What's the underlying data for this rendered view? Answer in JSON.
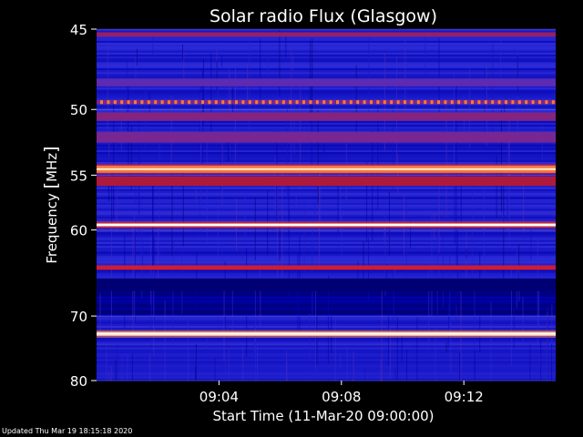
{
  "chart_data": {
    "type": "heatmap",
    "title": "Solar radio Flux (Glasgow)",
    "xlabel": "Start Time (11-Mar-20 09:00:00)",
    "ylabel_main": "Frequency ",
    "ylabel_unit": "MHz",
    "x_ticks": [
      "09:04",
      "09:08",
      "09:12"
    ],
    "x_tick_minutes": [
      4,
      8,
      12
    ],
    "x_range_minutes": [
      0,
      15
    ],
    "y_ticks": [
      45,
      50,
      55,
      60,
      70,
      80
    ],
    "y_scale": "reciprocal",
    "y_range_mhz": [
      45,
      80
    ],
    "colormap": [
      "#00004a",
      "#0000b0",
      "#2a2ad8",
      "#6a2aa8",
      "#b01a3a",
      "#ff2020",
      "#ff7a30",
      "#ffe070",
      "#ffffff"
    ],
    "bands": [
      {
        "mhz": 45.3,
        "intensity": 0.45,
        "width": 0.25
      },
      {
        "mhz": 48.2,
        "intensity": 0.35,
        "width": 0.5
      },
      {
        "mhz": 49.5,
        "intensity": 0.75,
        "width": 0.25,
        "dotted": true
      },
      {
        "mhz": 50.5,
        "intensity": 0.42,
        "width": 0.6
      },
      {
        "mhz": 52.0,
        "intensity": 0.4,
        "width": 0.8
      },
      {
        "mhz": 54.5,
        "intensity": 0.85,
        "width": 0.6
      },
      {
        "mhz": 55.5,
        "intensity": 0.5,
        "width": 0.8
      },
      {
        "mhz": 59.5,
        "intensity": 0.9,
        "width": 0.35
      },
      {
        "mhz": 64.0,
        "intensity": 0.55,
        "width": 0.5
      },
      {
        "mhz": 66.0,
        "intensity": 0.05,
        "width": 1.5
      },
      {
        "mhz": 72.5,
        "intensity": 1.0,
        "width": 0.6
      }
    ],
    "grid": true
  },
  "footer": {
    "updated": "Updated Thu Mar 19 18:15:18 2020"
  }
}
